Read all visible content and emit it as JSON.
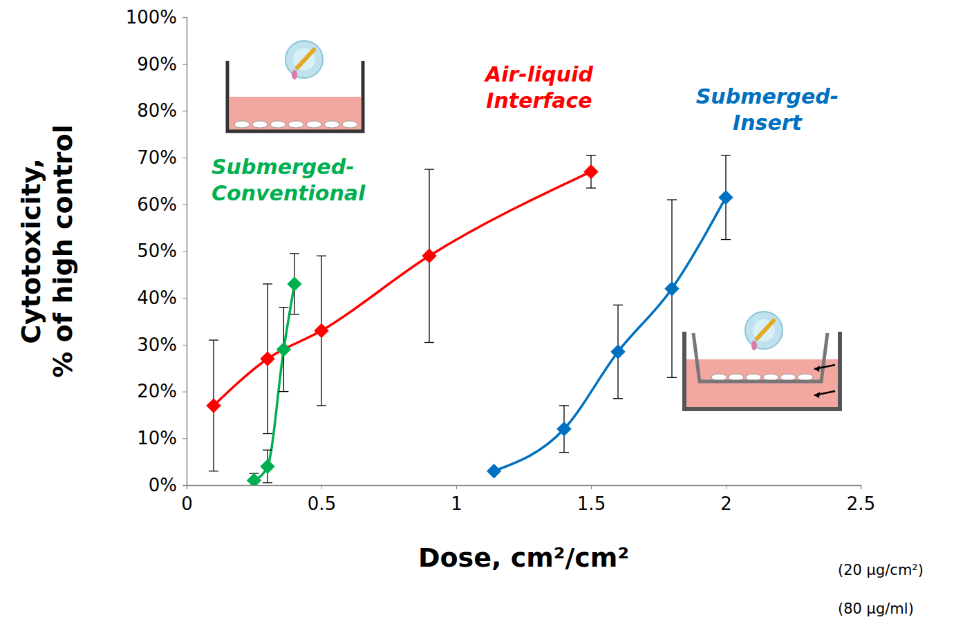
{
  "chart_data": {
    "type": "line",
    "x_label": "Dose, cm²/cm²",
    "y_label": "Cytotoxicity, % of high control",
    "xlim": [
      0,
      2.5
    ],
    "xticks": [
      0,
      0.5,
      1,
      1.5,
      2,
      2.5
    ],
    "ylim": [
      0,
      100
    ],
    "yticks": [
      {
        "value": 0,
        "label": "0%"
      },
      {
        "value": 10,
        "label": "10%"
      },
      {
        "value": 20,
        "label": "20%"
      },
      {
        "value": 30,
        "label": "30%"
      },
      {
        "value": 40,
        "label": "40%"
      },
      {
        "value": 50,
        "label": "50%"
      },
      {
        "value": 60,
        "label": "60%"
      },
      {
        "value": 70,
        "label": "70%"
      },
      {
        "value": 80,
        "label": "80%"
      },
      {
        "value": 90,
        "label": "90%"
      },
      {
        "value": 100,
        "label": "100%"
      }
    ],
    "grid": false,
    "marker": "diamond",
    "line_style": "smooth",
    "series": [
      {
        "name": "Air-liquid Interface",
        "color": "#ff0000",
        "x": [
          0.1,
          0.3,
          0.5,
          0.9,
          1.5
        ],
        "values": [
          17,
          27,
          33,
          49,
          67
        ],
        "errors": [
          14,
          16,
          16,
          18.5,
          3.5
        ]
      },
      {
        "name": "Submerged-Conventional",
        "color": "#00b050",
        "x": [
          0.25,
          0.3,
          0.36,
          0.4
        ],
        "values": [
          1,
          4,
          29,
          43
        ],
        "errors": [
          1.5,
          3.5,
          9,
          6.5
        ]
      },
      {
        "name": "Submerged-Insert",
        "color": "#0070c0",
        "x": [
          1.14,
          1.4,
          1.6,
          1.8,
          2
        ],
        "values": [
          3,
          12,
          28.5,
          42,
          61.5
        ],
        "errors": [
          0,
          5,
          10,
          19,
          9
        ]
      }
    ],
    "annotations": [
      "(20 µg/cm²)",
      "(80 µg/ml)"
    ]
  }
}
